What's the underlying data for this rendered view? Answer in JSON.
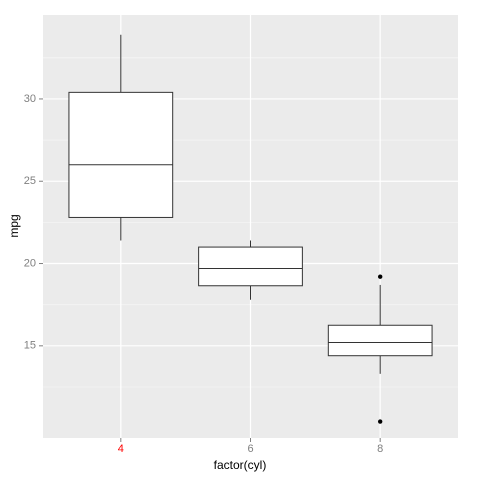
{
  "chart_data": {
    "type": "boxplot",
    "x_label": "factor(cyl)",
    "y_label": "mpg",
    "categories": [
      "4",
      "6",
      "8"
    ],
    "tick_label_colors": [
      "#ff0000",
      "#7f7f7f",
      "#7f7f7f"
    ],
    "whisker_low": [
      21.4,
      17.8,
      13.3
    ],
    "q1": [
      22.8,
      18.65,
      14.4
    ],
    "median": [
      26.0,
      19.7,
      15.2
    ],
    "q3": [
      30.4,
      21.0,
      16.25
    ],
    "whisker_high": [
      33.9,
      21.4,
      18.7
    ],
    "outliers": [
      [],
      [],
      [
        10.4,
        19.2
      ]
    ],
    "ylim": [
      9.4,
      35.1
    ],
    "yticks": [
      15,
      20,
      25,
      30
    ],
    "minor_yticks": [
      12.5,
      17.5,
      22.5,
      27.5,
      32.5
    ],
    "grid": true
  }
}
